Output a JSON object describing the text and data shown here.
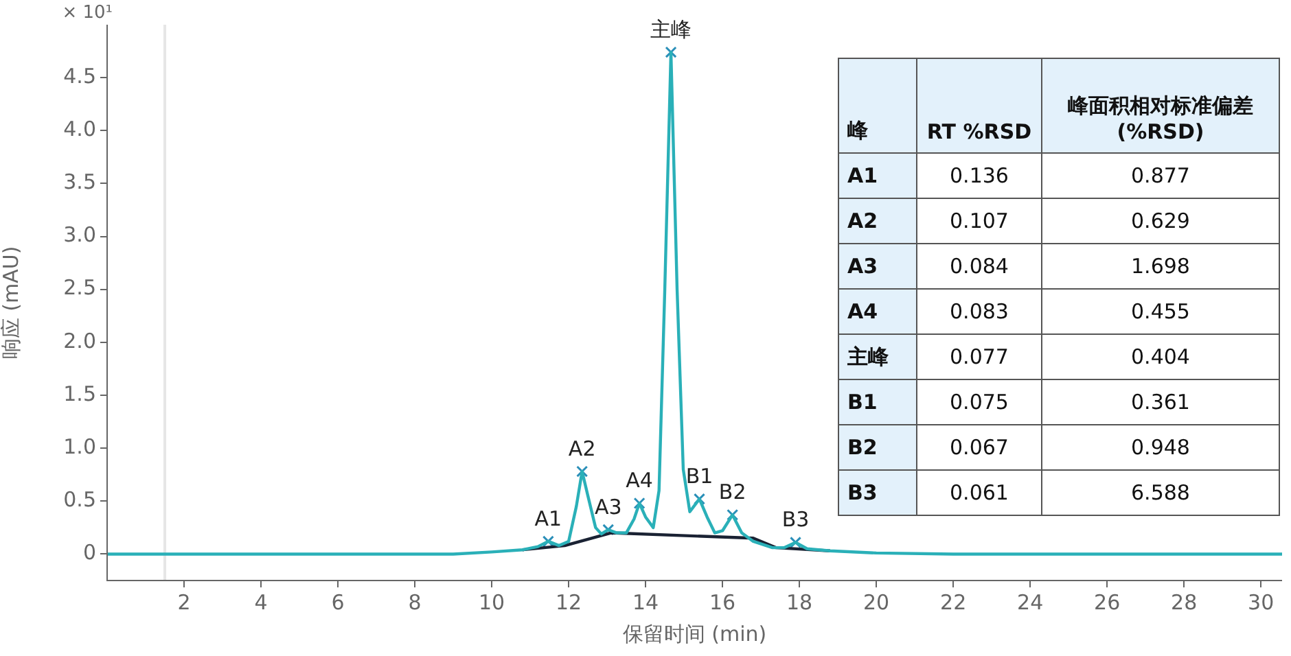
{
  "chart_data": [
    {
      "type": "line",
      "xlabel": "保留时间 (min)",
      "ylabel": "响应 (mAU)",
      "xlim": [
        0,
        30.55
      ],
      "xticks": [
        2,
        4,
        6,
        8,
        10,
        12,
        14,
        16,
        18,
        20,
        22,
        24,
        26,
        28,
        30
      ],
      "ylim": [
        -0.25,
        5.0
      ],
      "yticks": [
        {
          "value": 0,
          "label": "0"
        },
        0.5,
        {
          "value": 1,
          "label": "1.0"
        },
        1.5,
        {
          "value": 2,
          "label": "2.0"
        },
        2.5,
        {
          "value": 3,
          "label": "3.0"
        },
        3.5,
        {
          "value": 4,
          "label": "4.0"
        },
        4.5
      ],
      "grid": false,
      "legend": false,
      "marker": "none",
      "line_style": "solid",
      "series": [
        {
          "color": "#2ab0b8",
          "x": [
            0,
            1.4,
            9,
            10,
            10.8,
            11.2,
            11.47,
            11.75,
            12.0,
            12.2,
            12.35,
            12.5,
            12.7,
            12.85,
            13.03,
            13.25,
            13.5,
            13.7,
            13.84,
            14.0,
            14.2,
            14.35,
            14.5,
            14.66,
            14.82,
            14.98,
            15.15,
            15.4,
            15.6,
            15.8,
            16.0,
            16.26,
            16.5,
            16.8,
            17.3,
            17.6,
            17.9,
            18.2,
            18.8,
            20,
            22,
            30.55
          ],
          "values": [
            0,
            0,
            0,
            0.02,
            0.04,
            0.07,
            0.12,
            0.08,
            0.12,
            0.45,
            0.78,
            0.55,
            0.25,
            0.19,
            0.23,
            0.2,
            0.2,
            0.33,
            0.48,
            0.35,
            0.25,
            0.6,
            2.5,
            4.74,
            2.5,
            0.8,
            0.4,
            0.52,
            0.35,
            0.2,
            0.22,
            0.37,
            0.2,
            0.12,
            0.06,
            0.06,
            0.11,
            0.05,
            0.03,
            0.01,
            0,
            0
          ]
        },
        {
          "color": "#1a2233",
          "x": [
            10.8,
            11.9,
            13.1,
            16.8,
            17.4,
            18.8
          ],
          "values": [
            0.04,
            0.08,
            0.2,
            0.15,
            0.06,
            0.03
          ]
        },
        {
          "type": "scatter",
          "marker": "cross",
          "color": "#2a8fb8",
          "x": [
            11.47,
            12.35,
            13.03,
            13.84,
            14.66,
            15.4,
            16.26,
            17.9
          ],
          "values": [
            0.12,
            0.78,
            0.23,
            0.48,
            4.74,
            0.52,
            0.37,
            0.11
          ]
        }
      ],
      "ref_lines": [
        {
          "axis": "x",
          "value": 1.5,
          "color": "#e6e6e6"
        }
      ],
      "annotations": [
        "× 10¹",
        {
          "text": "A1",
          "x": 11.47,
          "y": 0.12
        },
        {
          "text": "A2",
          "x": 12.35,
          "y": 0.78
        },
        {
          "text": "A3",
          "x": 13.03,
          "y": 0.23
        },
        {
          "text": "A4",
          "x": 13.84,
          "y": 0.48
        },
        {
          "text": "主峰",
          "x": 14.66,
          "y": 4.74
        },
        {
          "text": "B1",
          "x": 15.4,
          "y": 0.52
        },
        {
          "text": "B2",
          "x": 16.26,
          "y": 0.37
        },
        {
          "text": "B3",
          "x": 17.9,
          "y": 0.11
        }
      ]
    },
    {
      "type": "heatmap",
      "ylabel": "峰",
      "data_labels": true,
      "categories": [
        "RT %RSD",
        "峰面积相对标准偏差 (%RSD)"
      ],
      "y_categories": [
        "A1",
        "A2",
        "A3",
        "A4",
        "主峰",
        "B1",
        "B2",
        "B3"
      ],
      "cells": [
        [
          0.136,
          0.877
        ],
        [
          0.107,
          0.629
        ],
        [
          0.084,
          1.698
        ],
        [
          0.083,
          0.455
        ],
        [
          0.077,
          0.404
        ],
        [
          0.075,
          0.361
        ],
        [
          0.067,
          0.948
        ],
        [
          0.061,
          6.588
        ]
      ]
    }
  ]
}
